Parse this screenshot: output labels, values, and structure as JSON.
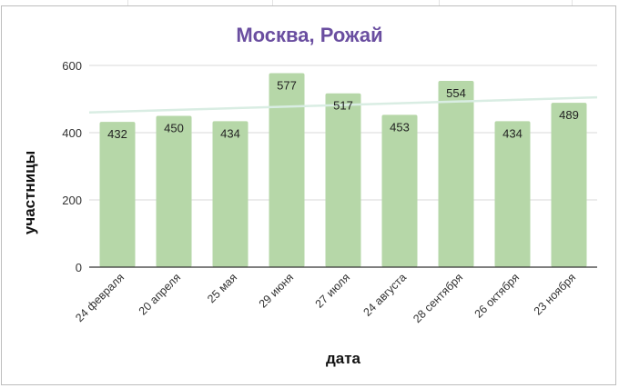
{
  "chart_data": {
    "type": "bar",
    "title": "Москва, Рожай",
    "xlabel": "дата",
    "ylabel": "участницы",
    "categories": [
      "24 февраля",
      "20 апреля",
      "25 мая",
      "29 июня",
      "27 июля",
      "24 августа",
      "28 сентября",
      "26 октября",
      "23 ноября"
    ],
    "values": [
      432,
      450,
      434,
      577,
      517,
      453,
      554,
      434,
      489
    ],
    "ylim": [
      0,
      600
    ],
    "yticks": [
      0,
      200,
      400,
      600
    ],
    "grid": true,
    "legend": "none",
    "trendline": {
      "type": "linear",
      "start": 460,
      "end": 505
    },
    "colors": {
      "bar": "#b6d7a8",
      "trendline": "#d9ede3",
      "title": "#6a4ea0",
      "grid": "#d9d9d9",
      "axis": "#333333"
    }
  }
}
